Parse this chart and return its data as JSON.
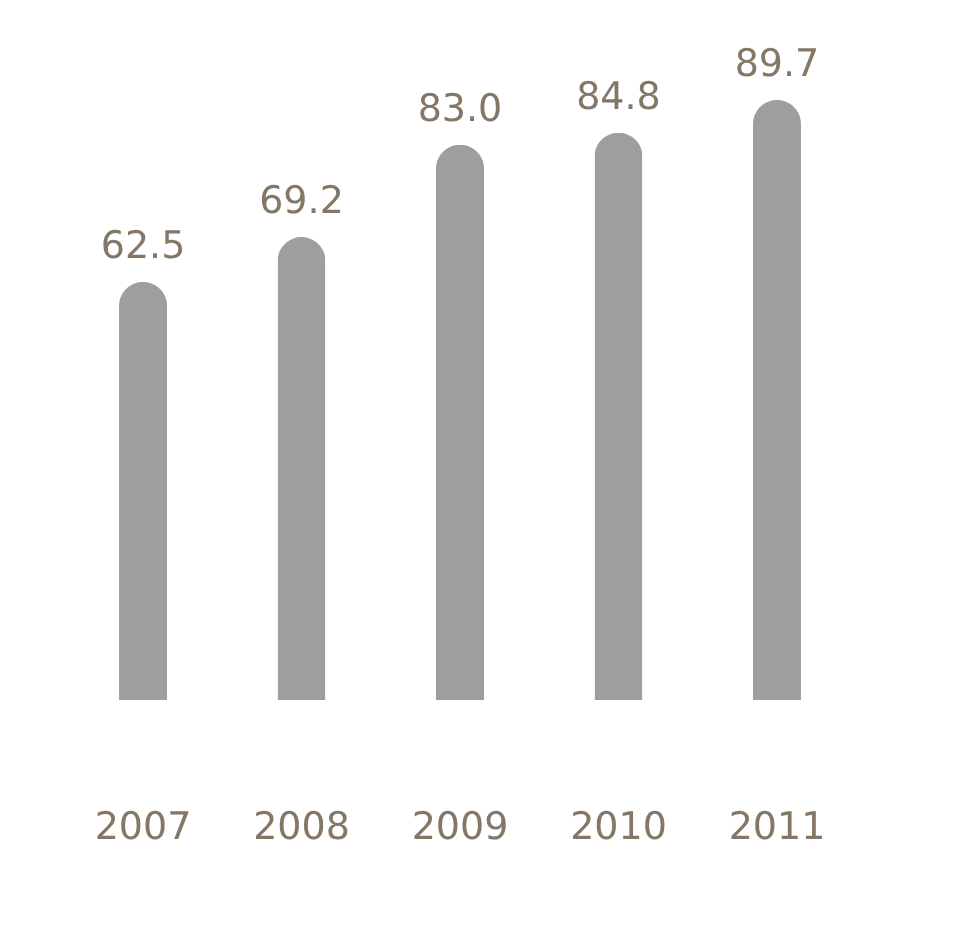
{
  "chart_data": {
    "type": "bar",
    "categories": [
      "2007",
      "2008",
      "2009",
      "2010",
      "2011"
    ],
    "values": [
      62.5,
      69.2,
      83.0,
      84.8,
      89.7
    ],
    "value_labels": [
      "62.5",
      "69.2",
      "83.0",
      "84.8",
      "89.7"
    ],
    "color": "#9d9ea0",
    "grid": false
  }
}
